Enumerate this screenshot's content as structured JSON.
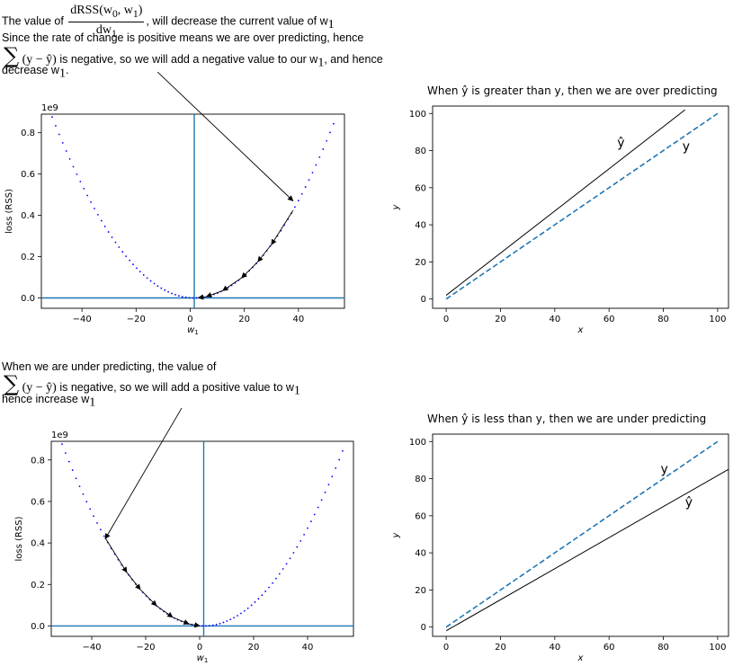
{
  "notes": {
    "top": {
      "line1_pre": "The value of",
      "frac_num": "dRSS(w",
      "frac_num_sub0": "0",
      "frac_num_mid": ", w",
      "frac_num_sub1": "1",
      "frac_num_end": ")",
      "frac_den": "dw",
      "frac_den_sub": "1",
      "line1_post": ", will decrease the current value of w",
      "line1_post_sub": "1",
      "line2": "Since the rate of change is positive means we are over predicting, hence",
      "sum_symbol": "∑",
      "sum_expr": "(y − ŷ)",
      "line3_post": "is negative, so we will add a negative value to our w",
      "line3_post_sub": "1",
      "line3_end": ", and hence",
      "line4": "decrease w",
      "line4_sub": "1",
      "line4_end": "."
    },
    "bottom": {
      "line1": "When we are under predicting, the value of",
      "sum_symbol": "∑",
      "sum_expr": "(y − ŷ)",
      "line2_post": "is negative, so we will add a positive value to w",
      "line2_post_sub": "1",
      "line3": "hence increase w",
      "line3_sub": "1"
    }
  },
  "chart_data": [
    {
      "type": "scatter",
      "title": "",
      "xlabel": "w",
      "xlabel_sub": "1",
      "ylabel": "loss (RSS)",
      "y_offset_label": "1e9",
      "xlim": [
        -55,
        57
      ],
      "ylim": [
        -0.05,
        0.89
      ],
      "xticks": [
        -40,
        -20,
        0,
        20,
        40
      ],
      "yticks": [
        0.0,
        0.2,
        0.4,
        0.6,
        0.8
      ],
      "curve": {
        "x_min": -51,
        "x_max": 53,
        "center": 1.5,
        "a": 0.000318,
        "step": 1.3,
        "color": "#0000ff"
      },
      "vline_x": 1.5,
      "hline_y": 0.0,
      "descent_points": [
        38,
        30,
        25,
        19,
        12,
        6,
        3
      ],
      "annotation": {
        "from_x": -22,
        "from_y": 1.05,
        "to_x": 38,
        "to_y": 0.47
      }
    },
    {
      "type": "line",
      "title": "When ŷ is greater than y, then we are over predicting",
      "xlabel": "x",
      "ylabel": "y",
      "xlim": [
        -5,
        104
      ],
      "ylim": [
        -5,
        104
      ],
      "xticks": [
        0,
        20,
        40,
        60,
        80,
        100
      ],
      "yticks": [
        0,
        20,
        40,
        60,
        80,
        100
      ],
      "series": [
        {
          "name": "ŷ",
          "x": [
            0,
            88
          ],
          "y": [
            2,
            102
          ],
          "style": "solid",
          "color": "#000000"
        },
        {
          "name": "y",
          "x": [
            0,
            100
          ],
          "y": [
            0,
            100
          ],
          "style": "dashed",
          "color": "#1f77b4"
        }
      ],
      "labels": [
        {
          "text": "ŷ",
          "x": 63,
          "y": 82
        },
        {
          "text": "y",
          "x": 87,
          "y": 80
        }
      ]
    },
    {
      "type": "scatter",
      "title": "",
      "xlabel": "w",
      "xlabel_sub": "1",
      "ylabel": "loss (RSS)",
      "y_offset_label": "1e9",
      "xlim": [
        -55,
        57
      ],
      "ylim": [
        -0.05,
        0.89
      ],
      "xticks": [
        -40,
        -20,
        0,
        20,
        40
      ],
      "yticks": [
        0.0,
        0.2,
        0.4,
        0.6,
        0.8
      ],
      "curve": {
        "x_min": -51,
        "x_max": 53,
        "center": 1.5,
        "a": 0.000318,
        "step": 1.3,
        "color": "#0000ff"
      },
      "vline_x": 1.5,
      "hline_y": 0.0,
      "descent_points": [
        -35,
        -27,
        -22,
        -16,
        -10,
        -4,
        0
      ],
      "annotation": {
        "from_x": -22,
        "from_y": 1.05,
        "to_x": -35,
        "to_y": 0.42
      }
    },
    {
      "type": "line",
      "title": "When ŷ is less than y, then we are under predicting",
      "xlabel": "x",
      "ylabel": "y",
      "xlim": [
        -5,
        104
      ],
      "ylim": [
        -5,
        104
      ],
      "xticks": [
        0,
        20,
        40,
        60,
        80,
        100
      ],
      "yticks": [
        0,
        20,
        40,
        60,
        80,
        100
      ],
      "series": [
        {
          "name": "y",
          "x": [
            0,
            100
          ],
          "y": [
            0,
            100
          ],
          "style": "dashed",
          "color": "#1f77b4"
        },
        {
          "name": "ŷ",
          "x": [
            0,
            104
          ],
          "y": [
            -2,
            85
          ],
          "style": "solid",
          "color": "#000000"
        }
      ],
      "labels": [
        {
          "text": "y",
          "x": 79,
          "y": 83
        },
        {
          "text": "ŷ",
          "x": 88,
          "y": 65
        }
      ]
    }
  ]
}
